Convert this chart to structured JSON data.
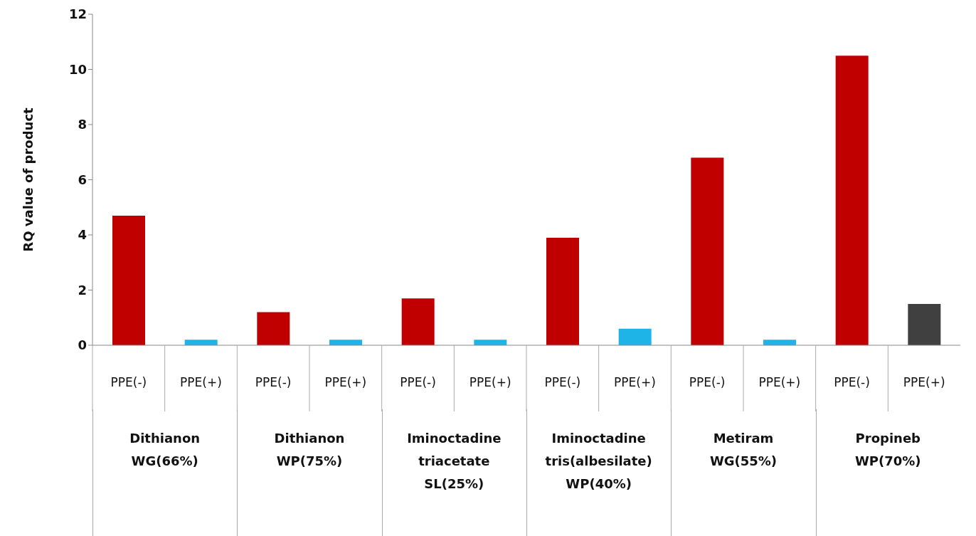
{
  "chart_data": {
    "type": "bar",
    "ylabel": "RQ value of product",
    "categories": [
      "PPE(-)",
      "PPE(+)",
      "PPE(-)",
      "PPE(+)",
      "PPE(-)",
      "PPE(+)",
      "PPE(-)",
      "PPE(+)",
      "PPE(-)",
      "PPE(+)",
      "PPE(-)",
      "PPE(+)"
    ],
    "values": [
      4.7,
      0.2,
      1.2,
      0.2,
      1.7,
      0.2,
      3.9,
      0.6,
      6.8,
      0.2,
      10.5,
      1.5
    ],
    "colors": [
      "#c00000",
      "#1eb4e8",
      "#c00000",
      "#1eb4e8",
      "#c00000",
      "#1eb4e8",
      "#c00000",
      "#1eb4e8",
      "#c00000",
      "#1eb4e8",
      "#c00000",
      "#404040"
    ],
    "ylim": [
      0,
      12
    ],
    "yticks": [
      0,
      2,
      4,
      6,
      8,
      10,
      12
    ],
    "grid": false,
    "annotations": [
      "Dithianon\nWG(66%)",
      "Dithianon\nWP(75%)",
      "Iminoctadine\ntriacetate\nSL(25%)",
      "Iminoctadine\ntris(albesilate)\nWP(40%)",
      "Metiram\nWG(55%)",
      "Propineb\nWP(70%)"
    ]
  }
}
